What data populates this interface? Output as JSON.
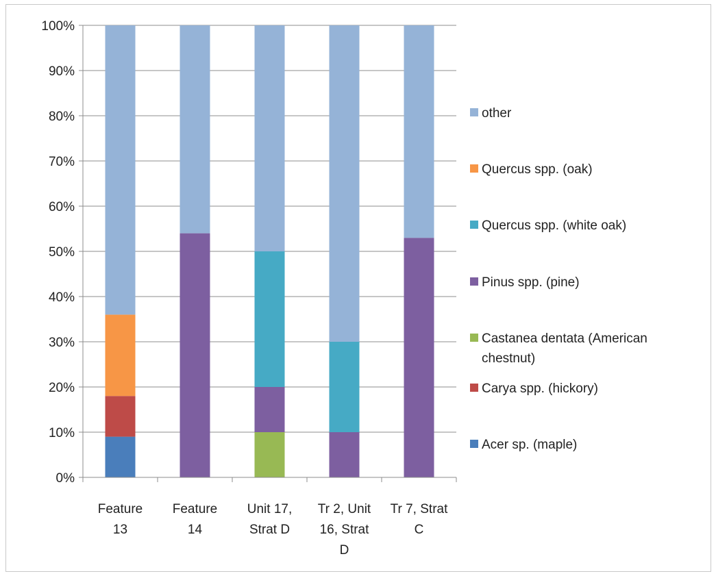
{
  "chart_data": {
    "type": "bar",
    "stacked": true,
    "normalized_percent": true,
    "title": "",
    "xlabel": "",
    "ylabel": "",
    "ylim": [
      0,
      100
    ],
    "yticks": [
      "0%",
      "10%",
      "20%",
      "30%",
      "40%",
      "50%",
      "60%",
      "70%",
      "80%",
      "90%",
      "100%"
    ],
    "grid": true,
    "legend_position": "right",
    "categories": [
      [
        "Feature",
        "13"
      ],
      [
        "Feature",
        "14"
      ],
      [
        "Unit 17,",
        "Strat D"
      ],
      [
        "Tr 2, Unit",
        "16, Strat",
        "D"
      ],
      [
        "Tr 7, Strat",
        "C"
      ]
    ],
    "series": [
      {
        "name": "Acer sp. (maple)",
        "color": "#4A7EBB",
        "values": [
          9,
          0,
          0,
          0,
          0
        ]
      },
      {
        "name": "Carya spp. (hickory)",
        "color": "#BE4B48",
        "values": [
          9,
          0,
          0,
          0,
          0
        ]
      },
      {
        "name": "Castanea dentata (American chestnut)",
        "color": "#98B954",
        "values": [
          0,
          0,
          10,
          0,
          0
        ]
      },
      {
        "name": "Pinus spp. (pine)",
        "color": "#7D5FA0",
        "values": [
          0,
          54,
          10,
          10,
          53
        ]
      },
      {
        "name": "Quercus spp. (white oak)",
        "color": "#46AAC5",
        "values": [
          0,
          0,
          30,
          20,
          0
        ]
      },
      {
        "name": "Quercus spp. (oak)",
        "color": "#F79646",
        "values": [
          18,
          0,
          0,
          0,
          0
        ]
      },
      {
        "name": "other",
        "color": "#95B3D7",
        "values": [
          64,
          46,
          50,
          70,
          47
        ]
      }
    ],
    "legend_order": [
      [
        "other"
      ],
      [
        "Quercus spp. (oak)"
      ],
      [
        "Quercus spp. (white oak)"
      ],
      [
        "Pinus spp. (pine)"
      ],
      [
        "Castanea dentata (American",
        "chestnut)"
      ],
      [
        "Carya spp. (hickory)"
      ],
      [
        "Acer sp. (maple)"
      ]
    ]
  }
}
